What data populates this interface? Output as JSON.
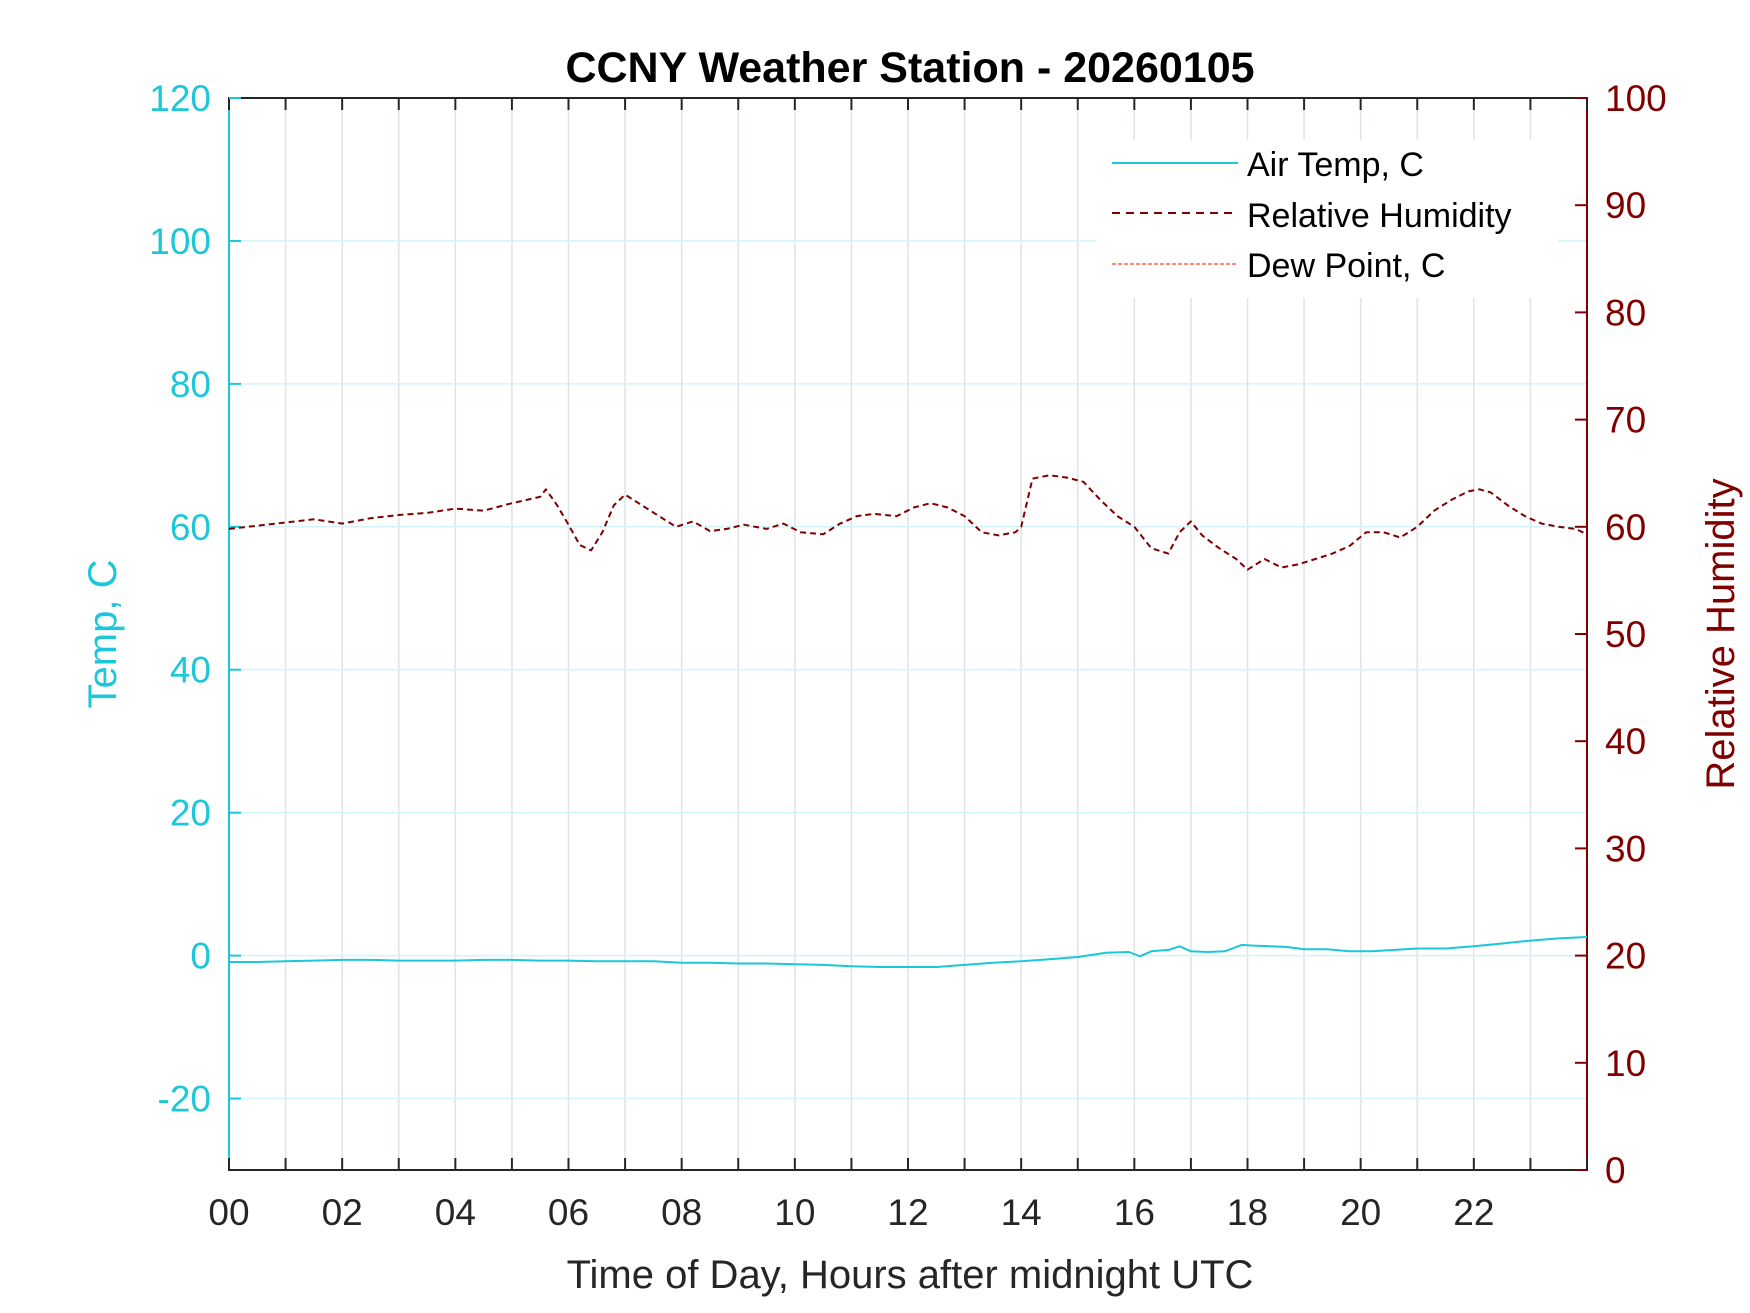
{
  "chart_data": {
    "type": "line",
    "title": "CCNY Weather Station - 20260105",
    "xlabel": "Time of Day, Hours after midnight UTC",
    "ylabel_left": "Temp, C",
    "ylabel_right": "Relative Humidity",
    "xlim": [
      0,
      24
    ],
    "ylim_left": [
      -30,
      120
    ],
    "ylim_right": [
      0,
      100
    ],
    "x_ticks": [
      "00",
      "02",
      "04",
      "06",
      "08",
      "10",
      "12",
      "14",
      "16",
      "18",
      "20",
      "22"
    ],
    "y_ticks_left": [
      "-20",
      "0",
      "20",
      "40",
      "60",
      "80",
      "100",
      "120"
    ],
    "y_ticks_right": [
      "0",
      "10",
      "20",
      "30",
      "40",
      "50",
      "60",
      "70",
      "80",
      "90",
      "100"
    ],
    "grid": true,
    "legend_position": "top-right",
    "colors": {
      "air_temp": "#1cc7d9",
      "relative_humidity": "#800000",
      "dew_point": "#ff6347"
    },
    "series": [
      {
        "name": "Air Temp, C",
        "axis": "left",
        "style": "solid",
        "x": [
          0,
          0.5,
          1,
          1.5,
          2,
          2.5,
          3,
          3.5,
          4,
          4.5,
          5,
          5.5,
          6,
          6.5,
          7,
          7.5,
          8,
          8.5,
          9,
          9.5,
          10,
          10.5,
          11,
          11.5,
          12,
          12.5,
          13,
          13.5,
          14,
          14.5,
          15,
          15.5,
          15.9,
          16.1,
          16.3,
          16.6,
          16.8,
          17.0,
          17.3,
          17.6,
          17.9,
          18.1,
          18.4,
          18.7,
          19.0,
          19.4,
          19.8,
          20.2,
          20.6,
          21.0,
          21.5,
          22.0,
          22.5,
          23.0,
          23.5,
          24.0
        ],
        "values": [
          -0.9,
          -0.9,
          -0.8,
          -0.7,
          -0.6,
          -0.6,
          -0.7,
          -0.7,
          -0.7,
          -0.6,
          -0.6,
          -0.7,
          -0.7,
          -0.8,
          -0.8,
          -0.8,
          -1.0,
          -1.0,
          -1.1,
          -1.1,
          -1.2,
          -1.3,
          -1.5,
          -1.6,
          -1.6,
          -1.6,
          -1.3,
          -1.0,
          -0.8,
          -0.5,
          -0.2,
          0.4,
          0.5,
          -0.1,
          0.6,
          0.8,
          1.3,
          0.6,
          0.5,
          0.6,
          1.5,
          1.4,
          1.3,
          1.2,
          0.9,
          0.9,
          0.6,
          0.6,
          0.8,
          1.0,
          1.0,
          1.3,
          1.7,
          2.1,
          2.4,
          2.6
        ]
      },
      {
        "name": "Relative Humidity",
        "axis": "right",
        "style": "dashed",
        "x": [
          0,
          0.5,
          1,
          1.5,
          2,
          2.5,
          3,
          3.5,
          4,
          4.5,
          5,
          5.5,
          5.6,
          5.8,
          6.0,
          6.2,
          6.4,
          6.6,
          6.8,
          7.0,
          7.3,
          7.6,
          7.9,
          8.2,
          8.5,
          8.8,
          9.1,
          9.5,
          9.8,
          10.1,
          10.5,
          10.8,
          11.1,
          11.4,
          11.8,
          12.1,
          12.4,
          12.7,
          13.0,
          13.3,
          13.6,
          13.9,
          14.0,
          14.2,
          14.5,
          14.8,
          15.1,
          15.4,
          15.7,
          16.0,
          16.3,
          16.6,
          16.8,
          17.0,
          17.2,
          17.5,
          17.8,
          18.0,
          18.3,
          18.6,
          18.9,
          19.2,
          19.5,
          19.8,
          20.1,
          20.4,
          20.7,
          21.0,
          21.3,
          21.6,
          21.9,
          22.1,
          22.3,
          22.6,
          22.9,
          23.2,
          23.5,
          23.8,
          24.0
        ],
        "values": [
          59.8,
          60.1,
          60.4,
          60.7,
          60.3,
          60.8,
          61.1,
          61.3,
          61.7,
          61.5,
          62.2,
          62.8,
          63.5,
          62.0,
          60.2,
          58.3,
          57.8,
          59.5,
          62.0,
          63.0,
          62.0,
          61.0,
          60.0,
          60.5,
          59.6,
          59.8,
          60.2,
          59.8,
          60.3,
          59.5,
          59.3,
          60.3,
          61.0,
          61.2,
          61.0,
          61.8,
          62.2,
          61.8,
          61.0,
          59.5,
          59.2,
          59.5,
          60.0,
          64.5,
          64.8,
          64.6,
          64.2,
          62.5,
          61.0,
          60.0,
          58.0,
          57.5,
          59.5,
          60.5,
          59.2,
          58.0,
          57.0,
          56.0,
          57.0,
          56.2,
          56.5,
          57.0,
          57.5,
          58.2,
          59.5,
          59.5,
          59.0,
          60.0,
          61.5,
          62.5,
          63.3,
          63.5,
          63.2,
          62.0,
          61.0,
          60.3,
          60.0,
          59.8,
          59.3
        ]
      },
      {
        "name": "Dew Point, C",
        "axis": "left",
        "style": "dashed",
        "x": [],
        "values": []
      }
    ]
  }
}
